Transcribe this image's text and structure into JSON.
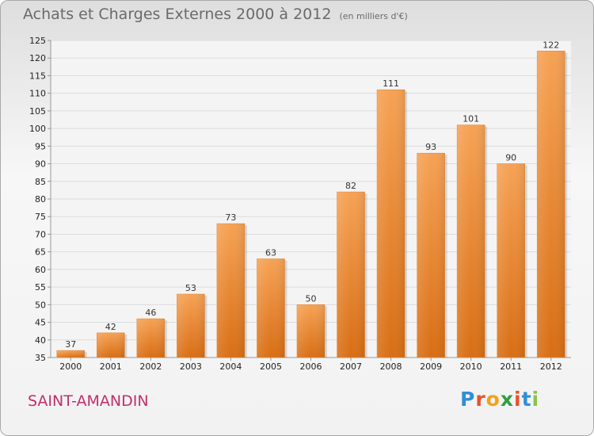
{
  "title": "Achats et Charges Externes 2000 à 2012",
  "unit_note": "(en milliers d'€)",
  "commune": "SAINT-AMANDIN",
  "brand": {
    "letters": [
      "P",
      "r",
      "o",
      "x",
      "i",
      "t",
      "i"
    ],
    "colors": [
      "#2f8fd8",
      "#e8522b",
      "#f3a21b",
      "#2f9e44",
      "#e8522b",
      "#2f8fd8",
      "#8bc34a"
    ]
  },
  "chart_data": {
    "type": "bar",
    "categories": [
      "2000",
      "2001",
      "2002",
      "2003",
      "2004",
      "2005",
      "2006",
      "2007",
      "2008",
      "2009",
      "2010",
      "2011",
      "2012"
    ],
    "values": [
      37,
      42,
      46,
      53,
      73,
      63,
      50,
      82,
      111,
      93,
      101,
      90,
      122
    ],
    "ylim": [
      35,
      125
    ],
    "yticks": [
      35,
      40,
      45,
      50,
      55,
      60,
      65,
      70,
      75,
      80,
      85,
      90,
      95,
      100,
      105,
      110,
      115,
      120,
      125
    ],
    "grid": true,
    "bar_color": "#f0913a"
  }
}
